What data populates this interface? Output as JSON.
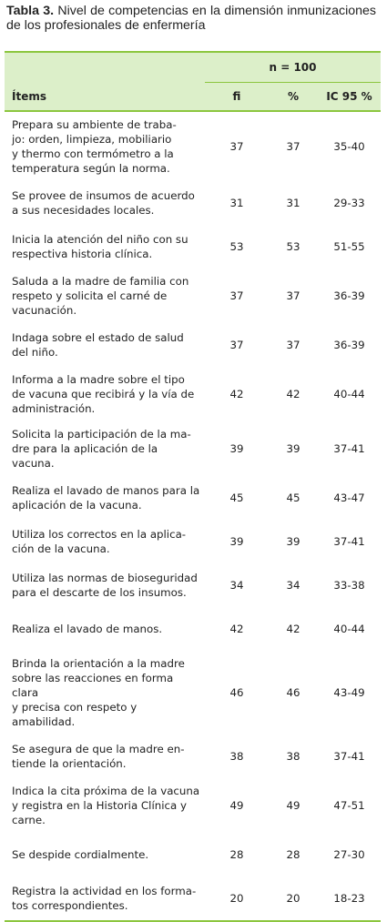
{
  "caption": {
    "label": "Tabla 3.",
    "text": "Nivel de competencias en la dimensión inmunizaciones de los profesionales de enfermería"
  },
  "table": {
    "group_header": "n = 100",
    "columns": [
      "Ítems",
      "fi",
      "%",
      "IC 95 %"
    ],
    "rows": [
      {
        "item": [
          "Prepara su ambiente de traba-",
          "jo: orden, limpieza, mobiliario",
          "y thermo con termómetro a la",
          "temperatura según la norma."
        ],
        "fi": "37",
        "pct": "37",
        "ic": "35-40"
      },
      {
        "item": [
          "Se provee de insumos de acuerdo",
          "a sus necesidades locales."
        ],
        "fi": "31",
        "pct": "31",
        "ic": "29-33"
      },
      {
        "item": [
          "Inicia la atención del niño con su",
          "respectiva historia clínica."
        ],
        "fi": "53",
        "pct": "53",
        "ic": "51-55"
      },
      {
        "item": [
          "Saluda a la madre de familia con",
          "respeto y solicita el carné de",
          "vacunación."
        ],
        "fi": "37",
        "pct": "37",
        "ic": "36-39"
      },
      {
        "item": [
          "Indaga sobre el estado de salud",
          "del niño."
        ],
        "fi": "37",
        "pct": "37",
        "ic": "36-39"
      },
      {
        "item": [
          "Informa a la madre sobre el tipo",
          "de vacuna que recibirá y la vía de",
          "administración."
        ],
        "fi": "42",
        "pct": "42",
        "ic": "40-44"
      },
      {
        "item": [
          "Solicita la participación de la ma-",
          "dre para la aplicación de la vacuna."
        ],
        "fi": "39",
        "pct": "39",
        "ic": "37-41"
      },
      {
        "item": [
          "Realiza el lavado de manos para la",
          "aplicación de la vacuna."
        ],
        "fi": "45",
        "pct": "45",
        "ic": "43-47"
      },
      {
        "item": [
          "Utiliza los correctos en la aplica-",
          "ción de la vacuna."
        ],
        "fi": "39",
        "pct": "39",
        "ic": "37-41"
      },
      {
        "item": [
          "Utiliza las normas de bioseguridad",
          "para el descarte de los insumos."
        ],
        "fi": "34",
        "pct": "34",
        "ic": "33-38"
      },
      {
        "item": [
          "Realiza el lavado de manos."
        ],
        "fi": "42",
        "pct": "42",
        "ic": "40-44"
      },
      {
        "item": [
          "Brinda la orientación a la madre",
          "sobre las reacciones en forma clara",
          "y precisa con respeto y amabilidad."
        ],
        "fi": "46",
        "pct": "46",
        "ic": "43-49"
      },
      {
        "item": [
          "Se asegura de que la madre en-",
          "tiende la orientación."
        ],
        "fi": "38",
        "pct": "38",
        "ic": "37-41"
      },
      {
        "item": [
          "Indica la cita próxima de la vacuna",
          "y registra en la Historia Clínica y",
          "carne."
        ],
        "fi": "49",
        "pct": "49",
        "ic": "47-51"
      },
      {
        "item": [
          "Se despide cordialmente."
        ],
        "fi": "28",
        "pct": "28",
        "ic": "27-30"
      },
      {
        "item": [
          "Registra la actividad en los forma-",
          "tos correspondientes."
        ],
        "fi": "20",
        "pct": "20",
        "ic": "18-23"
      }
    ]
  }
}
